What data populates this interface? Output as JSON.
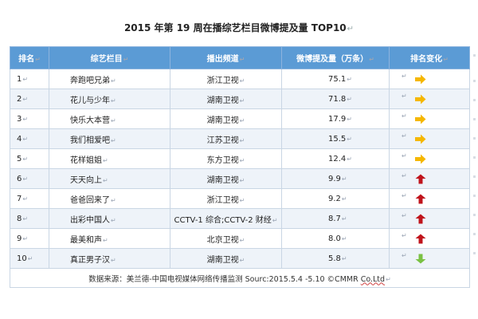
{
  "title": {
    "text": "2015 年第 19 周在播综艺栏目微博提及量 TOP10",
    "mark": "↵"
  },
  "table": {
    "headers": [
      "排名",
      "综艺栏目",
      "播出频道",
      "微博提及量（万条）",
      "排名变化"
    ],
    "header_mark": "↵",
    "rows": [
      {
        "rank": "1",
        "show": "奔跑吧兄弟",
        "channel": "浙江卫视",
        "mentions": "75.1",
        "change": "flat"
      },
      {
        "rank": "2",
        "show": "花儿与少年",
        "channel": "湖南卫视",
        "mentions": "71.8",
        "change": "flat"
      },
      {
        "rank": "3",
        "show": "快乐大本营",
        "channel": "湖南卫视",
        "mentions": "17.9",
        "change": "flat"
      },
      {
        "rank": "4",
        "show": "我们相爱吧",
        "channel": "江苏卫视",
        "mentions": "15.5",
        "change": "flat"
      },
      {
        "rank": "5",
        "show": "花样姐姐",
        "channel": "东方卫视",
        "mentions": "12.4",
        "change": "flat"
      },
      {
        "rank": "6",
        "show": "天天向上",
        "channel": "湖南卫视",
        "mentions": "9.9",
        "change": "up"
      },
      {
        "rank": "7",
        "show": "爸爸回来了",
        "channel": "浙江卫视",
        "mentions": "9.2",
        "change": "up"
      },
      {
        "rank": "8",
        "show": "出彩中国人",
        "channel": "CCTV-1 综合;CCTV-2 财经",
        "mentions": "8.7",
        "change": "up"
      },
      {
        "rank": "9",
        "show": "最美和声",
        "channel": "北京卫视",
        "mentions": "8.0",
        "change": "up"
      },
      {
        "rank": "10",
        "show": "真正男子汉",
        "channel": "湖南卫视",
        "mentions": "5.8",
        "change": "down"
      }
    ],
    "cell_mark": "↵",
    "footer": {
      "text": "数据来源：美兰德-中国电视媒体网络传播监测 Sourc:2015.5.4 -5.10 ©CMMR ",
      "underlined": "Co.Ltd",
      "mark": "↵"
    }
  },
  "colors": {
    "header_bg": "#5b9bd5",
    "flat_arrow": "#f5b700",
    "up_arrow": "#c0141c",
    "down_arrow": "#7ac143"
  },
  "icons": {
    "flat": "right-arrow-icon",
    "up": "up-arrow-icon",
    "down": "down-arrow-icon"
  }
}
